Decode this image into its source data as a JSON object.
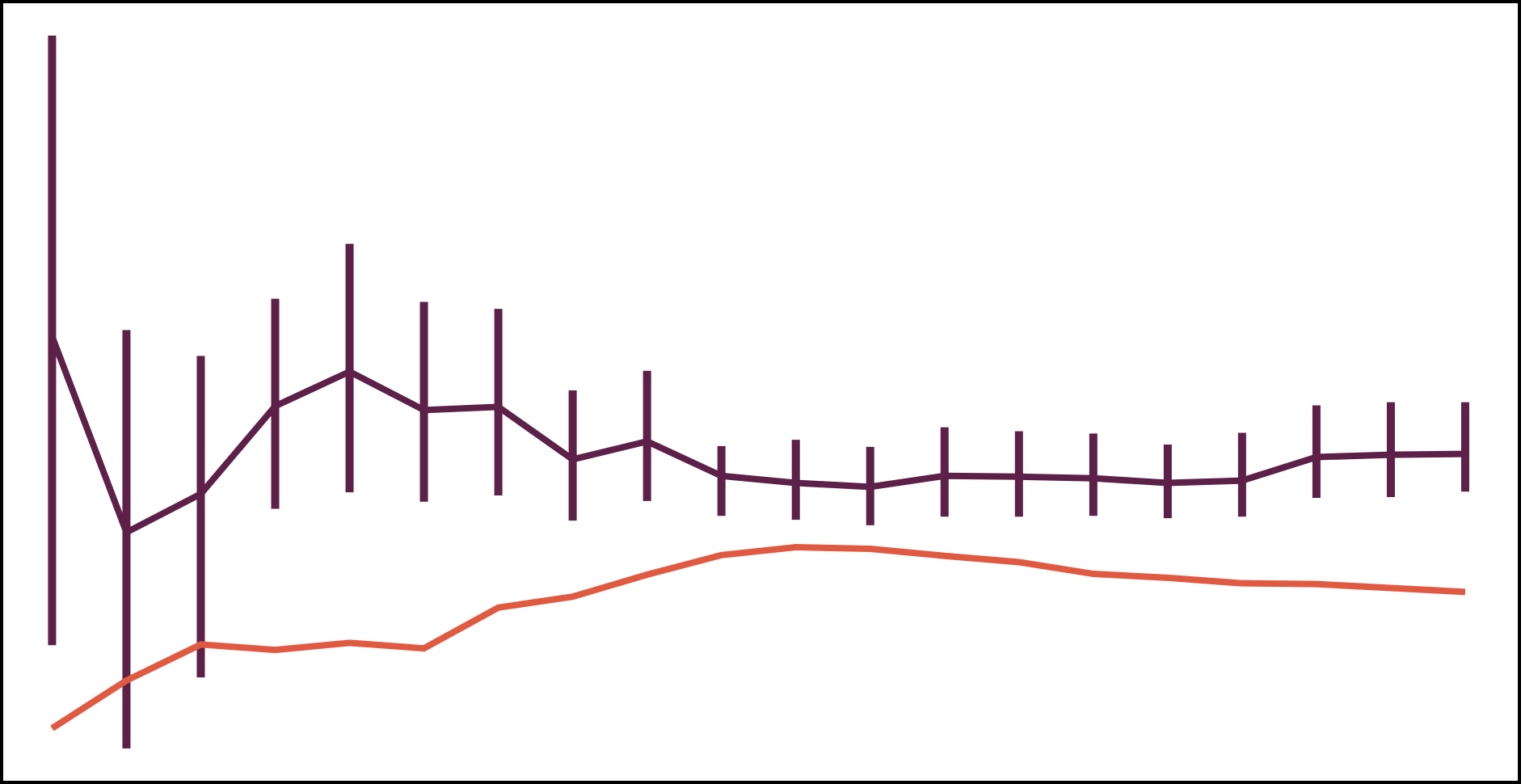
{
  "chart_data": {
    "type": "line",
    "x": [
      1,
      2,
      3,
      4,
      5,
      6,
      7,
      8,
      9,
      10,
      11,
      12,
      13,
      14,
      15,
      16,
      17,
      18,
      19,
      20
    ],
    "xlim": [
      0.3,
      20.75
    ],
    "ylim": [
      0,
      1000
    ],
    "grid": false,
    "legend": "none",
    "series": [
      {
        "color": "#5c2049",
        "values": [
          571,
          321,
          370,
          482,
          526,
          477,
          481,
          414,
          437,
          393,
          384,
          379,
          393,
          392,
          390,
          384,
          387,
          417,
          420,
          421
        ],
        "err_low": [
          177,
          22,
          136,
          351,
          372,
          360,
          368,
          336,
          361,
          342,
          337,
          330,
          341,
          341,
          342,
          339,
          341,
          365,
          366,
          373
        ],
        "err_high": [
          1003,
          579,
          546,
          619,
          689,
          615,
          606,
          502,
          527,
          431,
          439,
          430,
          455,
          450,
          447,
          433,
          448,
          483,
          487,
          487
        ]
      },
      {
        "color": "#e05a42",
        "values": [
          71,
          132,
          178,
          171,
          180,
          173,
          225,
          239,
          267,
          292,
          302,
          300,
          291,
          283,
          268,
          263,
          256,
          255,
          250,
          245
        ]
      }
    ]
  }
}
